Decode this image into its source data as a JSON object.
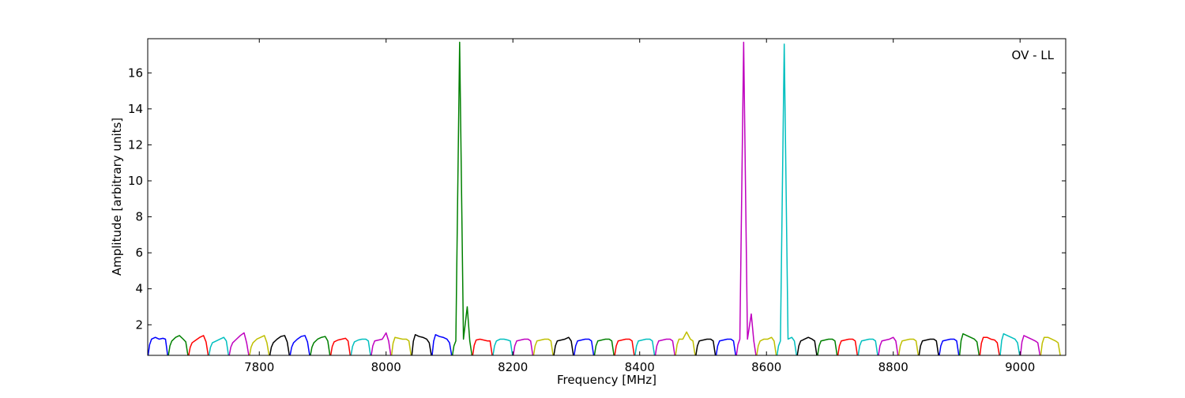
{
  "chart_data": {
    "type": "line",
    "title": "",
    "annotation": "OV - LL",
    "xlabel": "Frequency [MHz]",
    "ylabel": "Amplitude [arbitrary units]",
    "xlim": [
      7624,
      9072
    ],
    "ylim": [
      0.3,
      17.9
    ],
    "x_ticks": [
      7800,
      8000,
      8200,
      8400,
      8600,
      8800,
      9000
    ],
    "y_ticks": [
      2,
      4,
      6,
      8,
      10,
      12,
      14,
      16
    ],
    "x_tick_labels": [
      "7800",
      "8000",
      "8200",
      "8400",
      "8600",
      "8800",
      "9000"
    ],
    "y_tick_labels": [
      "2",
      "4",
      "6",
      "8",
      "10",
      "12",
      "14",
      "16"
    ],
    "grid": false,
    "legend": "none",
    "channel_width_mhz": 32,
    "channel_start_mhz": 7624,
    "series": [
      {
        "color": "#0000ff",
        "values": [
          1.2,
          1.3,
          1.2,
          1.25,
          1.2
        ]
      },
      {
        "color": "#008000",
        "values": [
          1.1,
          1.3,
          1.4,
          1.2,
          1.05
        ]
      },
      {
        "color": "#ff0000",
        "values": [
          1.0,
          1.15,
          1.3,
          1.4,
          1.05
        ]
      },
      {
        "color": "#00bfbf",
        "values": [
          1.0,
          1.1,
          1.2,
          1.3,
          1.1
        ]
      },
      {
        "color": "#bf00bf",
        "values": [
          1.0,
          1.2,
          1.4,
          1.55,
          1.0
        ]
      },
      {
        "color": "#bfbf00",
        "values": [
          1.0,
          1.2,
          1.3,
          1.4,
          1.0
        ]
      },
      {
        "color": "#000000",
        "values": [
          1.0,
          1.2,
          1.35,
          1.4,
          1.05
        ]
      },
      {
        "color": "#0000ff",
        "values": [
          1.0,
          1.2,
          1.35,
          1.4,
          1.05
        ]
      },
      {
        "color": "#008000",
        "values": [
          1.0,
          1.2,
          1.3,
          1.35,
          1.1
        ]
      },
      {
        "color": "#ff0000",
        "values": [
          1.05,
          1.15,
          1.2,
          1.25,
          1.1
        ]
      },
      {
        "color": "#00bfbf",
        "values": [
          1.05,
          1.15,
          1.2,
          1.2,
          1.1
        ]
      },
      {
        "color": "#bf00bf",
        "values": [
          1.1,
          1.15,
          1.2,
          1.55,
          1.1
        ]
      },
      {
        "color": "#bfbf00",
        "values": [
          1.3,
          1.25,
          1.2,
          1.2,
          1.1
        ]
      },
      {
        "color": "#000000",
        "values": [
          1.45,
          1.35,
          1.3,
          1.2,
          1.0
        ]
      },
      {
        "color": "#0000ff",
        "values": [
          1.45,
          1.35,
          1.3,
          1.2,
          1.0
        ]
      },
      {
        "color": "#008000",
        "values": [
          1.1,
          17.7,
          1.2,
          3.0,
          1.1
        ]
      },
      {
        "color": "#ff0000",
        "values": [
          1.15,
          1.2,
          1.15,
          1.1,
          1.1
        ]
      },
      {
        "color": "#00bfbf",
        "values": [
          1.1,
          1.2,
          1.2,
          1.15,
          1.1
        ]
      },
      {
        "color": "#bf00bf",
        "values": [
          1.1,
          1.15,
          1.2,
          1.2,
          1.1
        ]
      },
      {
        "color": "#bfbf00",
        "values": [
          1.1,
          1.15,
          1.2,
          1.2,
          1.1
        ]
      },
      {
        "color": "#000000",
        "values": [
          1.1,
          1.15,
          1.2,
          1.3,
          1.1
        ]
      },
      {
        "color": "#0000ff",
        "values": [
          1.1,
          1.15,
          1.2,
          1.2,
          1.1
        ]
      },
      {
        "color": "#008000",
        "values": [
          1.1,
          1.15,
          1.2,
          1.2,
          1.1
        ]
      },
      {
        "color": "#ff0000",
        "values": [
          1.1,
          1.15,
          1.2,
          1.2,
          1.1
        ]
      },
      {
        "color": "#00bfbf",
        "values": [
          1.1,
          1.15,
          1.2,
          1.2,
          1.1
        ]
      },
      {
        "color": "#bf00bf",
        "values": [
          1.1,
          1.15,
          1.2,
          1.2,
          1.1
        ]
      },
      {
        "color": "#bfbf00",
        "values": [
          1.2,
          1.2,
          1.6,
          1.2,
          1.1
        ]
      },
      {
        "color": "#000000",
        "values": [
          1.1,
          1.15,
          1.2,
          1.2,
          1.1
        ]
      },
      {
        "color": "#0000ff",
        "values": [
          1.1,
          1.15,
          1.2,
          1.2,
          1.1
        ]
      },
      {
        "color": "#bf00bf",
        "values": [
          1.2,
          17.7,
          1.2,
          2.6,
          1.1
        ]
      },
      {
        "color": "#bfbf00",
        "values": [
          1.1,
          1.2,
          1.2,
          1.3,
          1.1
        ]
      },
      {
        "color": "#00bfbf",
        "values": [
          1.1,
          17.6,
          1.2,
          1.3,
          1.1
        ]
      },
      {
        "color": "#000000",
        "values": [
          1.1,
          1.2,
          1.3,
          1.2,
          1.1
        ]
      },
      {
        "color": "#008000",
        "values": [
          1.1,
          1.15,
          1.2,
          1.2,
          1.1
        ]
      },
      {
        "color": "#ff0000",
        "values": [
          1.1,
          1.15,
          1.2,
          1.2,
          1.1
        ]
      },
      {
        "color": "#00bfbf",
        "values": [
          1.1,
          1.15,
          1.2,
          1.2,
          1.1
        ]
      },
      {
        "color": "#bf00bf",
        "values": [
          1.1,
          1.15,
          1.2,
          1.3,
          1.1
        ]
      },
      {
        "color": "#bfbf00",
        "values": [
          1.1,
          1.15,
          1.2,
          1.2,
          1.1
        ]
      },
      {
        "color": "#000000",
        "values": [
          1.1,
          1.15,
          1.2,
          1.2,
          1.1
        ]
      },
      {
        "color": "#0000ff",
        "values": [
          1.1,
          1.15,
          1.2,
          1.2,
          1.1
        ]
      },
      {
        "color": "#008000",
        "values": [
          1.5,
          1.4,
          1.3,
          1.2,
          1.05
        ]
      },
      {
        "color": "#ff0000",
        "values": [
          1.3,
          1.3,
          1.2,
          1.15,
          1.0
        ]
      },
      {
        "color": "#00bfbf",
        "values": [
          1.5,
          1.4,
          1.3,
          1.2,
          1.0
        ]
      },
      {
        "color": "#bf00bf",
        "values": [
          1.4,
          1.3,
          1.2,
          1.1,
          1.0
        ]
      },
      {
        "color": "#bfbf00",
        "values": [
          1.3,
          1.3,
          1.2,
          1.1,
          1.0
        ]
      }
    ]
  }
}
